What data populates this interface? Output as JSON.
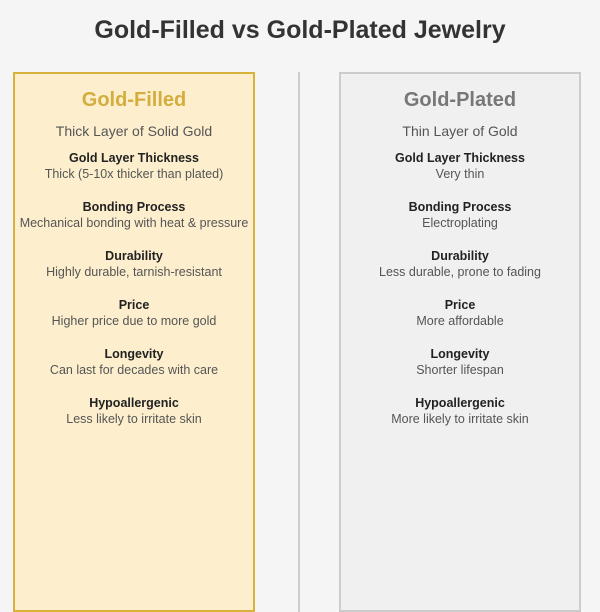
{
  "title": "Gold-Filled vs Gold-Plated Jewelry",
  "colors": {
    "gold": "#d4ae3c",
    "gold_bg": "#fdefcd",
    "gray": "#777777",
    "gray_bg": "#f0f0f0"
  },
  "panels": [
    {
      "heading": "Gold-Filled",
      "subtitle": "Thick Layer of Solid Gold",
      "items": [
        {
          "label": "Gold Layer Thickness",
          "value": "Thick (5-10x thicker than plated)"
        },
        {
          "label": "Bonding Process",
          "value": "Mechanical bonding with heat & pressure"
        },
        {
          "label": "Durability",
          "value": "Highly durable, tarnish-resistant"
        },
        {
          "label": "Price",
          "value": "Higher price due to more gold"
        },
        {
          "label": "Longevity",
          "value": "Can last for decades with care"
        },
        {
          "label": "Hypoallergenic",
          "value": "Less likely to irritate skin"
        }
      ]
    },
    {
      "heading": "Gold-Plated",
      "subtitle": "Thin Layer of Gold",
      "items": [
        {
          "label": "Gold Layer Thickness",
          "value": "Very thin"
        },
        {
          "label": "Bonding Process",
          "value": "Electroplating"
        },
        {
          "label": "Durability",
          "value": "Less durable, prone to fading"
        },
        {
          "label": "Price",
          "value": "More affordable"
        },
        {
          "label": "Longevity",
          "value": "Shorter lifespan"
        },
        {
          "label": "Hypoallergenic",
          "value": "More likely to irritate skin"
        }
      ]
    }
  ]
}
